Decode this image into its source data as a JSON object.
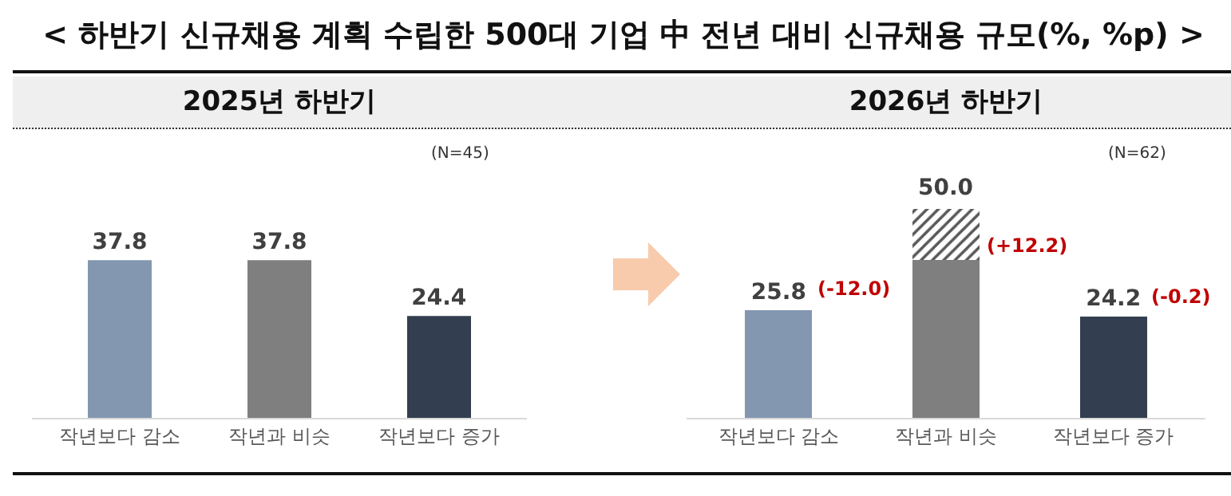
{
  "chart_data": [
    {
      "type": "bar",
      "title": "< 하반기 신규채용 계획 수립한 500대 기업 中 전년 대비 신규채용 규모(%, %p) >",
      "subtitle": "2025년 하반기",
      "categories": [
        "작년보다 감소",
        "작년과 비슷",
        "작년보다 증가"
      ],
      "series": [
        {
          "values": [
            37.8,
            37.8,
            24.4
          ],
          "colors": [
            "#8497b0",
            "#7f7f7f",
            "#333f50"
          ]
        }
      ],
      "data_labels": true,
      "legend": false,
      "annotations": [
        "(N=45)"
      ]
    },
    {
      "type": "bar",
      "title": "2026년 하반기",
      "categories": [
        "작년보다 감소",
        "작년과 비슷",
        "작년보다 증가"
      ],
      "stacked": true,
      "series": [
        {
          "values": [
            25.8,
            37.8,
            24.2
          ],
          "colors": [
            "#8497b0",
            "#7f7f7f",
            "#333f50"
          ],
          "value_labels": [
            "25.8",
            null,
            "24.2"
          ]
        },
        {
          "values": [
            null,
            12.2,
            null
          ],
          "color": "#595959"
        }
      ],
      "totals": [
        null,
        "50.0",
        null
      ],
      "legend": false,
      "annotations": [
        "(N=62)",
        {
          "text": "(-12.0)",
          "x": "작년보다 감소",
          "y": 25.8
        },
        {
          "text": "(+12.2)",
          "x": "작년과 비슷",
          "y": 50
        },
        {
          "text": "(-0.2)",
          "x": "작년보다 증가",
          "y": 24.2
        }
      ]
    }
  ]
}
